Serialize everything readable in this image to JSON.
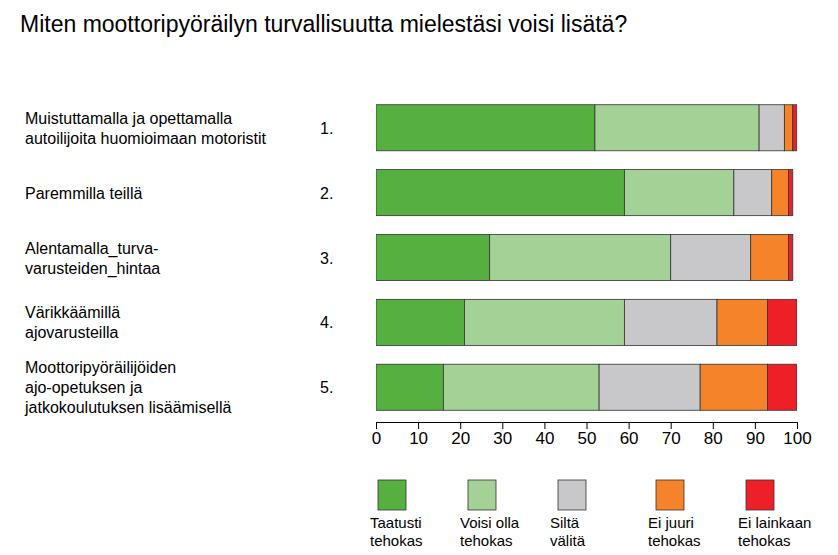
{
  "chart_data": {
    "type": "bar",
    "orientation": "horizontal",
    "stacked": true,
    "grid": false,
    "legend": "bottom",
    "title": "Miten moottoripyöräilyn turvallisuutta mielestäsi voisi lisätä?",
    "categories": [
      "Muistuttamalla ja opettamalla\nautoilijoita huomioimaan motoristit",
      "Paremmilla teillä",
      "Alentamalla_turva-\nvarusteiden_hintaa",
      "Värikkäämillä\najovarusteilla",
      "Moottoripyöräilijöiden\najo-opetuksen ja\njatkokoulutuksen lisäämisellä"
    ],
    "annotations": [
      "1.",
      "2.",
      "3.",
      "4.",
      "5."
    ],
    "series": [
      {
        "name": "Taatusti\ntehokas",
        "color": "#55b040",
        "values": [
          52,
          59,
          27,
          21,
          16
        ]
      },
      {
        "name": "Voisi olla\ntehokas",
        "color": "#a3d196",
        "values": [
          39,
          26,
          43,
          38,
          37
        ]
      },
      {
        "name": "Siltä\nvälitä",
        "color": "#c8c8ca",
        "values": [
          6,
          9,
          19,
          22,
          24
        ]
      },
      {
        "name": "Ei juuri\ntehokas",
        "color": "#f5832a",
        "values": [
          2,
          4,
          9,
          12,
          16
        ]
      },
      {
        "name": "Ei lainkaan\ntehokas",
        "color": "#ee2027",
        "values": [
          1,
          1,
          1,
          7,
          7
        ]
      }
    ],
    "xlim": [
      0,
      100
    ],
    "xticks": [
      0,
      10,
      20,
      30,
      40,
      50,
      60,
      70,
      80,
      90,
      100
    ]
  }
}
